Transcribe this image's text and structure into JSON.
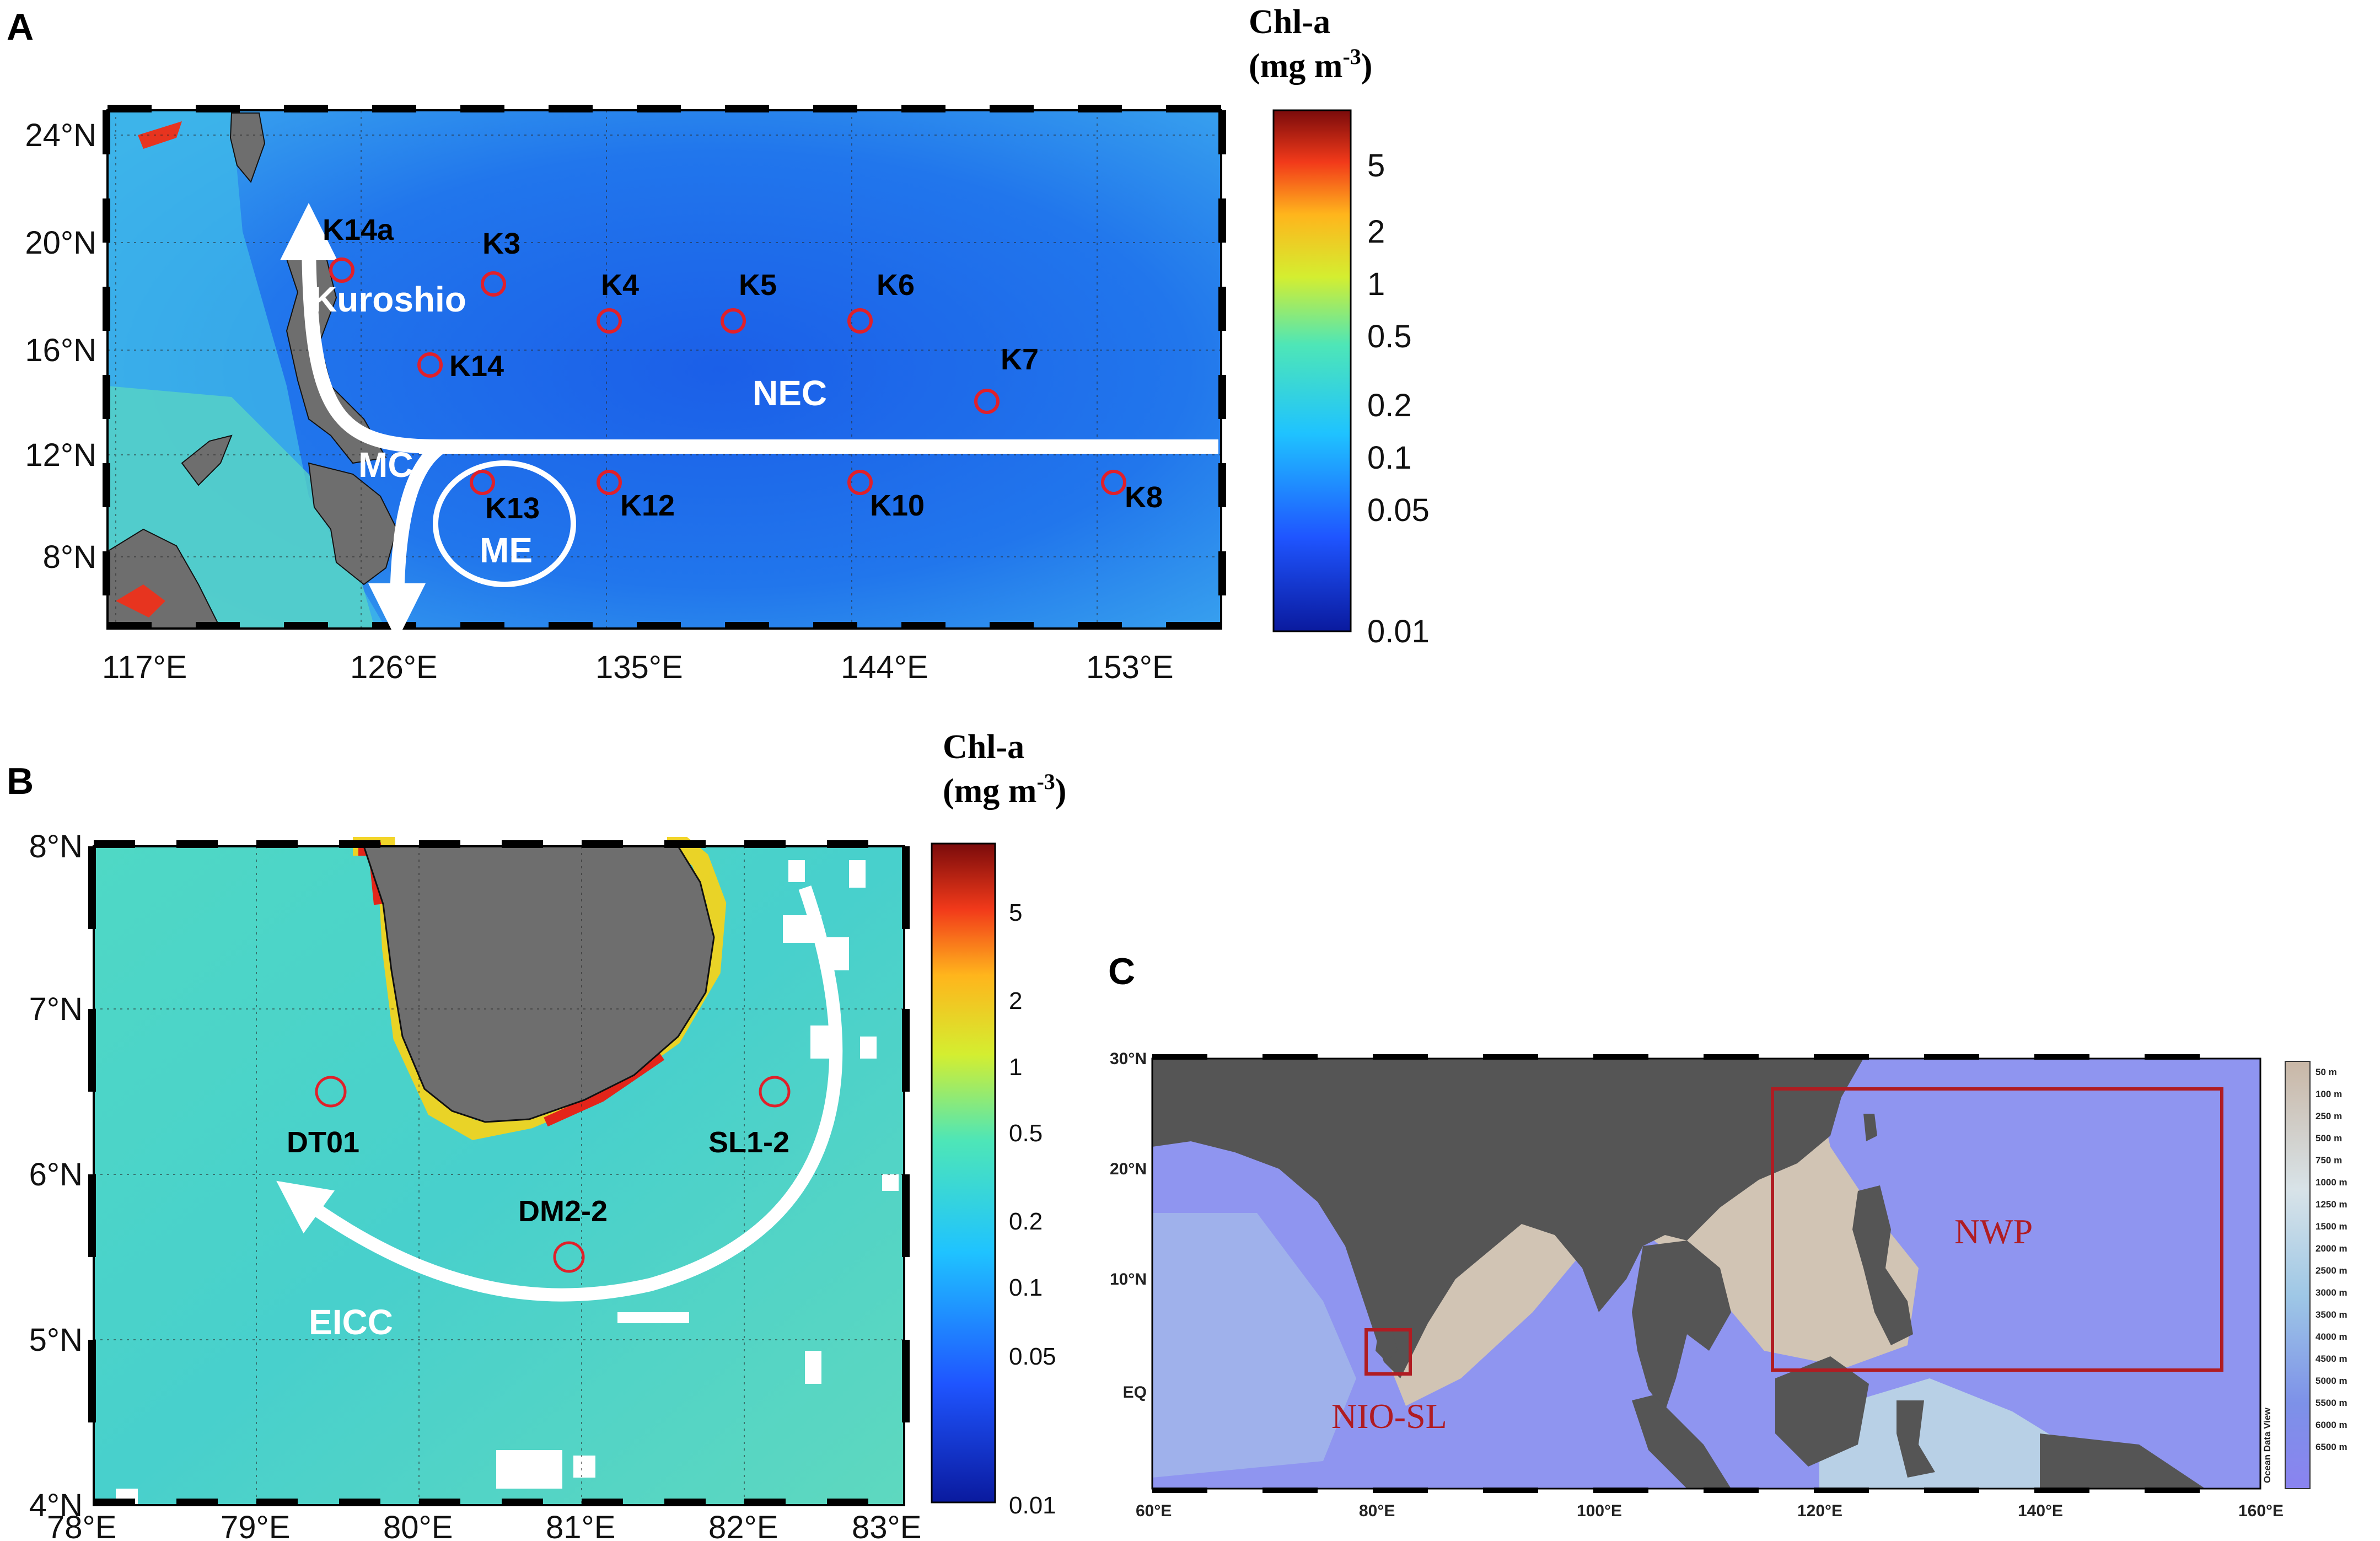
{
  "panels": {
    "A": {
      "letter": "A",
      "colorbar_title": [
        "Chl-a",
        "(mg m",
        "-3",
        ")"
      ],
      "colorbar_ticks": [
        "5",
        "2",
        "1",
        "0.5",
        "0.2",
        "0.1",
        "0.05",
        "0.01"
      ],
      "lon_ticks": [
        "117°E",
        "126°E",
        "135°E",
        "144°E",
        "153°E"
      ],
      "lat_ticks": [
        "24°N",
        "20°N",
        "16°N",
        "12°N",
        "8°N"
      ],
      "stations": [
        "K14a",
        "K3",
        "K4",
        "K5",
        "K6",
        "K7",
        "K14",
        "K13",
        "K12",
        "K10",
        "K8"
      ],
      "currents": [
        "Kuroshio",
        "NEC",
        "MC",
        "ME"
      ]
    },
    "B": {
      "letter": "B",
      "colorbar_title": [
        "Chl-a",
        "(mg m",
        "-3",
        ")"
      ],
      "colorbar_ticks": [
        "5",
        "2",
        "1",
        "0.5",
        "0.2",
        "0.1",
        "0.05",
        "0.01"
      ],
      "lon_ticks": [
        "78°E",
        "79°E",
        "80°E",
        "81°E",
        "82°E",
        "83°E"
      ],
      "lat_ticks": [
        "8°N",
        "7°N",
        "6°N",
        "5°N",
        "4°N"
      ],
      "stations": [
        "DT01",
        "SL1-2",
        "DM2-2"
      ],
      "currents": [
        "EICC"
      ]
    },
    "C": {
      "letter": "C",
      "lon_ticks": [
        "60°E",
        "80°E",
        "100°E",
        "120°E",
        "140°E",
        "160°E"
      ],
      "lat_ticks": [
        "30°N",
        "20°N",
        "10°N",
        "EQ"
      ],
      "regions": [
        "NWP",
        "NIO-SL"
      ],
      "depth_ticks": [
        "50 m",
        "100 m",
        "250 m",
        "500 m",
        "750 m",
        "1000 m",
        "1250 m",
        "1500 m",
        "2000 m",
        "2500 m",
        "3000 m",
        "3500 m",
        "4000 m",
        "4500 m",
        "5000 m",
        "5500 m",
        "6000 m",
        "6500 m"
      ],
      "watermark": "Ocean Data View"
    }
  },
  "colors": {
    "ocean_a": "#1f6fe0",
    "ocean_b": "#46d2c6",
    "ocean_c": "#8f95f0",
    "land": "#6e6e6e",
    "station_circle": "#e0202a",
    "region_box": "#b01c22",
    "arrow": "#ffffff"
  }
}
